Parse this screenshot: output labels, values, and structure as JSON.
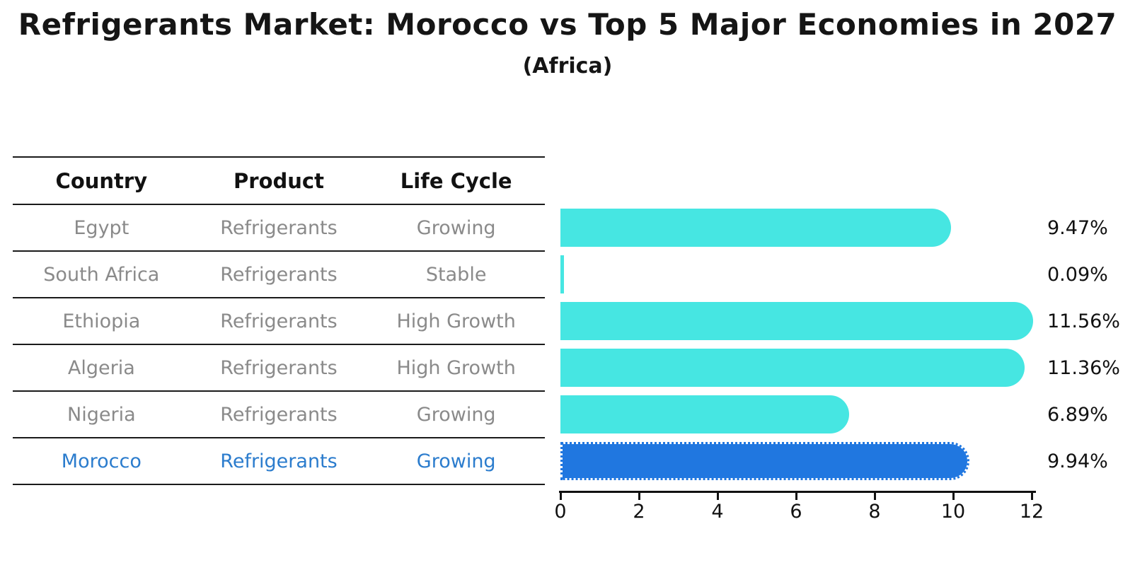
{
  "title": "Refrigerants Market: Morocco vs Top 5 Major Economies in 2027",
  "subtitle": "(Africa)",
  "table": {
    "headers": [
      "Country",
      "Product",
      "Life Cycle"
    ],
    "rows": [
      {
        "country": "Egypt",
        "product": "Refrigerants",
        "life_cycle": "Growing",
        "highlight": false
      },
      {
        "country": "South Africa",
        "product": "Refrigerants",
        "life_cycle": "Stable",
        "highlight": false
      },
      {
        "country": "Ethiopia",
        "product": "Refrigerants",
        "life_cycle": "High Growth",
        "highlight": false
      },
      {
        "country": "Algeria",
        "product": "Refrigerants",
        "life_cycle": "High Growth",
        "highlight": false
      },
      {
        "country": "Nigeria",
        "product": "Refrigerants",
        "life_cycle": "Growing",
        "highlight": false
      },
      {
        "country": "Morocco",
        "product": "Refrigerants",
        "life_cycle": "Growing",
        "highlight": true
      }
    ]
  },
  "chart_data": {
    "type": "bar",
    "orientation": "horizontal",
    "title": "Refrigerants Market: Morocco vs Top 5 Major Economies in 2027",
    "subtitle": "(Africa)",
    "categories": [
      "Egypt",
      "South Africa",
      "Ethiopia",
      "Algeria",
      "Nigeria",
      "Morocco"
    ],
    "values": [
      9.47,
      0.09,
      11.56,
      11.36,
      6.89,
      9.94
    ],
    "value_labels": [
      "9.47%",
      "0.09%",
      "11.56%",
      "11.36%",
      "6.89%",
      "9.94%"
    ],
    "xlim": [
      0,
      12
    ],
    "xticks": [
      "0",
      "2",
      "4",
      "6",
      "8",
      "10",
      "12"
    ],
    "highlight_index": 5,
    "grid": false,
    "legend_position": "none",
    "bar_color": "#46e6e2",
    "highlight_bar_color": "#2077e0",
    "highlight_text_color": "#2b7ccd"
  }
}
